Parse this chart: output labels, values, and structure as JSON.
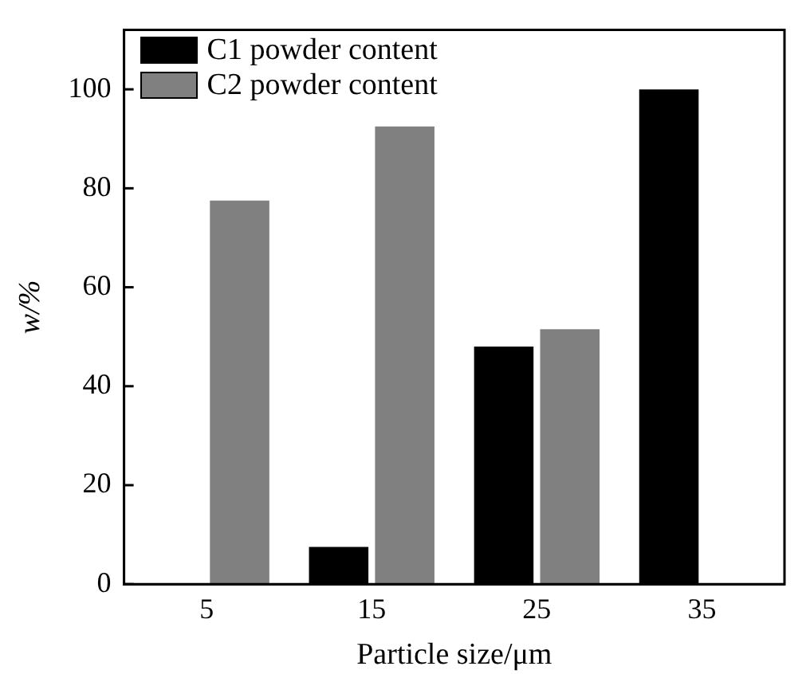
{
  "chart_data": {
    "type": "bar",
    "xlabel": "Particle size/μm",
    "ylabel": "w/%",
    "categories": [
      "5",
      "15",
      "25",
      "35"
    ],
    "series": [
      {
        "name": "C1 powder content",
        "color": "#000000",
        "values": [
          null,
          7.5,
          48,
          100
        ]
      },
      {
        "name": "C2 powder content",
        "color": "#808080",
        "values": [
          77.5,
          92.5,
          51.5,
          null
        ]
      }
    ],
    "ylim": [
      0,
      112
    ],
    "yticks": [
      0,
      20,
      40,
      60,
      80,
      100
    ],
    "grid": false,
    "legend": "top left"
  }
}
